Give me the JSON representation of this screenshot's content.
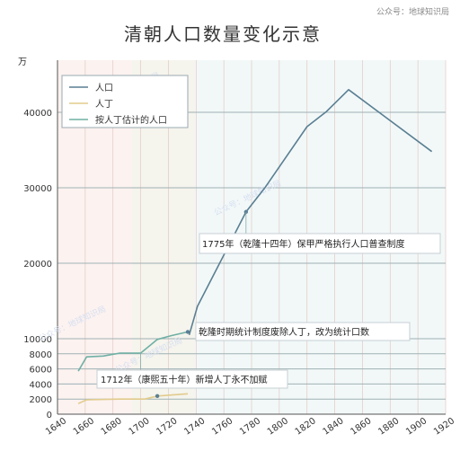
{
  "credit": "公众号：地球知识局",
  "chart_data": {
    "type": "line",
    "title": "清朝人口数量变化示意",
    "ylabel": "万",
    "xlim": [
      1640,
      1920
    ],
    "ylim": [
      0,
      47000
    ],
    "x_ticks": [
      1640,
      1660,
      1680,
      1700,
      1720,
      1740,
      1760,
      1780,
      1800,
      1820,
      1840,
      1860,
      1880,
      1900,
      1920
    ],
    "y_ticks": [
      0,
      2000,
      4000,
      6000,
      8000,
      10000,
      20000,
      30000,
      40000
    ],
    "grid": true,
    "legend_position": "top-left",
    "series": [
      {
        "name": "人口",
        "color": "#5a7f93",
        "points": [
          [
            1735,
            10500
          ],
          [
            1741,
            14300
          ],
          [
            1776,
            26800
          ],
          [
            1790,
            30100
          ],
          [
            1820,
            38100
          ],
          [
            1834,
            40100
          ],
          [
            1850,
            43000
          ],
          [
            1910,
            34800
          ]
        ]
      },
      {
        "name": "人丁",
        "color": "#e2cb8c",
        "points": [
          [
            1655,
            1400
          ],
          [
            1661,
            1900
          ],
          [
            1685,
            2000
          ],
          [
            1703,
            2000
          ],
          [
            1712,
            2400
          ],
          [
            1734,
            2700
          ]
        ]
      },
      {
        "name": "按人丁估计的人口",
        "color": "#6fb0a4",
        "points": [
          [
            1655,
            5700
          ],
          [
            1661,
            7600
          ],
          [
            1673,
            7700
          ],
          [
            1685,
            8100
          ],
          [
            1700,
            8100
          ],
          [
            1712,
            9900
          ],
          [
            1722,
            10400
          ],
          [
            1734,
            10900
          ]
        ]
      }
    ],
    "annotations": [
      {
        "text": "1775年（乾隆十四年）保甲严格执行人口普查制度",
        "x": 1776,
        "y": 26800
      },
      {
        "text": "乾隆时期统计制度废除人丁，改为统计口数",
        "x": 1734,
        "y": 10900
      },
      {
        "text": "1712年（康熙五十年）新增人丁永不加赋",
        "x": 1712,
        "y": 2400
      }
    ]
  }
}
